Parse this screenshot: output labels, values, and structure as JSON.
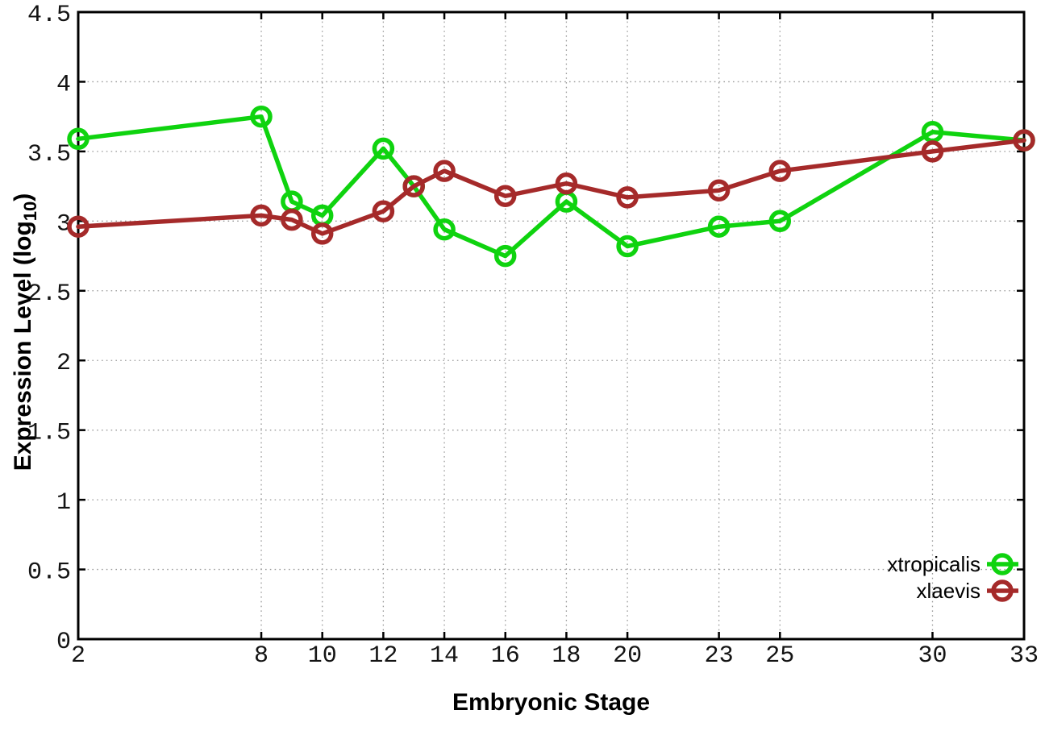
{
  "chart_data": {
    "type": "line",
    "title": "",
    "xlabel": "Embryonic Stage",
    "ylabel": "Expression Level (log10)",
    "ylabel_text": "Expression Level (log",
    "ylabel_subscript": "10",
    "ylabel_suffix": ")",
    "xlim": [
      2,
      33
    ],
    "ylim": [
      0,
      4.5
    ],
    "x_ticks": [
      2,
      8,
      10,
      12,
      14,
      16,
      18,
      20,
      23,
      25,
      30,
      33
    ],
    "y_ticks": [
      0,
      0.5,
      1,
      1.5,
      2,
      2.5,
      3,
      3.5,
      4,
      4.5
    ],
    "grid": true,
    "legend_position": "bottom-right",
    "background_color": "#ffffff",
    "grid_color": "#9a9a9a",
    "border_color": "#000000",
    "series": [
      {
        "name": "xtropicalis",
        "color": "#0fd30f",
        "x": [
          2,
          8,
          9,
          10,
          12,
          13,
          14,
          16,
          18,
          20,
          23,
          25,
          30,
          33
        ],
        "y": [
          3.59,
          3.75,
          3.14,
          3.04,
          3.52,
          3.25,
          2.94,
          2.75,
          3.14,
          2.82,
          2.96,
          3.0,
          3.64,
          3.58
        ]
      },
      {
        "name": "xlaevis",
        "color": "#a52a2a",
        "x": [
          2,
          8,
          9,
          10,
          12,
          13,
          14,
          16,
          18,
          20,
          23,
          25,
          30,
          33
        ],
        "y": [
          2.96,
          3.04,
          3.01,
          2.91,
          3.07,
          3.25,
          3.36,
          3.18,
          3.27,
          3.17,
          3.22,
          3.36,
          3.5,
          3.58
        ]
      }
    ]
  }
}
